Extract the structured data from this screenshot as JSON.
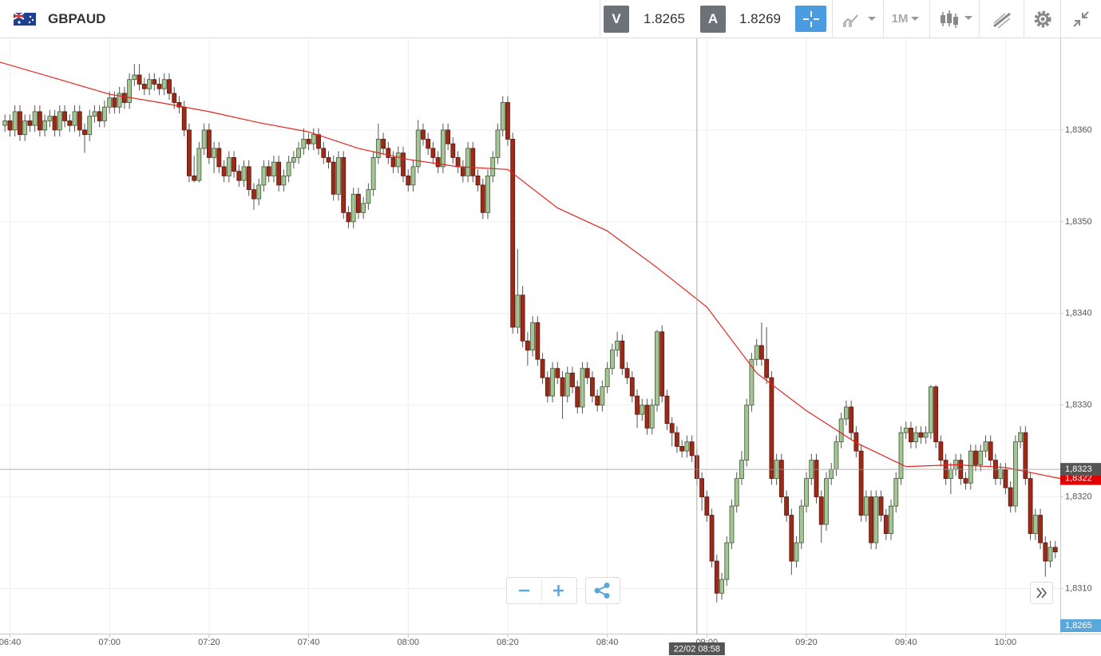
{
  "header": {
    "symbol": "GBPAUD",
    "sell_label": "V",
    "sell_price": "1.8265",
    "buy_label": "A",
    "buy_price": "1.8269",
    "timeframe": "1M"
  },
  "chart_data": {
    "type": "candlestick",
    "x": [
      "06:39",
      "06:40",
      "06:41",
      "06:42",
      "06:43",
      "06:44",
      "06:45",
      "06:46",
      "06:47",
      "06:48",
      "06:49",
      "06:50",
      "06:51",
      "06:52",
      "06:53",
      "06:54",
      "06:55",
      "06:56",
      "06:57",
      "06:58",
      "06:59",
      "07:00",
      "07:01",
      "07:02",
      "07:03",
      "07:04",
      "07:05",
      "07:06",
      "07:07",
      "07:08",
      "07:09",
      "07:10",
      "07:11",
      "07:12",
      "07:13",
      "07:14",
      "07:15",
      "07:16",
      "07:17",
      "07:18",
      "07:19",
      "07:20",
      "07:21",
      "07:22",
      "07:23",
      "07:24",
      "07:25",
      "07:26",
      "07:27",
      "07:28",
      "07:29",
      "07:30",
      "07:31",
      "07:32",
      "07:33",
      "07:34",
      "07:35",
      "07:36",
      "07:37",
      "07:38",
      "07:39",
      "07:40",
      "07:41",
      "07:42",
      "07:43",
      "07:44",
      "07:45",
      "07:46",
      "07:47",
      "07:48",
      "07:49",
      "07:50",
      "07:51",
      "07:52",
      "07:53",
      "07:54",
      "07:55",
      "07:56",
      "07:57",
      "07:58",
      "07:59",
      "08:00",
      "08:01",
      "08:02",
      "08:03",
      "08:04",
      "08:05",
      "08:06",
      "08:07",
      "08:08",
      "08:09",
      "08:10",
      "08:11",
      "08:12",
      "08:13",
      "08:14",
      "08:15",
      "08:16",
      "08:17",
      "08:18",
      "08:19",
      "08:20",
      "08:21",
      "08:22",
      "08:23",
      "08:24",
      "08:25",
      "08:26",
      "08:27",
      "08:28",
      "08:29",
      "08:30",
      "08:31",
      "08:32",
      "08:33",
      "08:34",
      "08:35",
      "08:36",
      "08:37",
      "08:38",
      "08:39",
      "08:40",
      "08:41",
      "08:42",
      "08:43",
      "08:44",
      "08:45",
      "08:46",
      "08:47",
      "08:48",
      "08:49",
      "08:50",
      "08:51",
      "08:52",
      "08:53",
      "08:54",
      "08:55",
      "08:56",
      "08:57",
      "08:58",
      "08:59",
      "09:00",
      "09:01",
      "09:02",
      "09:03",
      "09:04",
      "09:05",
      "09:06",
      "09:07",
      "09:08",
      "09:09",
      "09:10",
      "09:11",
      "09:12",
      "09:13",
      "09:14",
      "09:15",
      "09:16",
      "09:17",
      "09:18",
      "09:19",
      "09:20",
      "09:21",
      "09:22",
      "09:23",
      "09:24",
      "09:25",
      "09:26",
      "09:27",
      "09:28",
      "09:29",
      "09:30",
      "09:31",
      "09:32",
      "09:33",
      "09:34",
      "09:35",
      "09:36",
      "09:37",
      "09:38",
      "09:39",
      "09:40",
      "09:41",
      "09:42",
      "09:43",
      "09:44",
      "09:45",
      "09:46",
      "09:47",
      "09:48",
      "09:49",
      "09:50",
      "09:51",
      "09:52",
      "09:53",
      "09:54",
      "09:55",
      "09:56",
      "09:57",
      "09:58",
      "09:59",
      "10:00",
      "10:01",
      "10:02",
      "10:03",
      "10:04",
      "10:05",
      "10:06",
      "10:07",
      "10:08",
      "10:09",
      "10:10"
    ],
    "open": [
      1.83605,
      1.8361,
      1.836,
      1.8362,
      1.83595,
      1.8361,
      1.83605,
      1.8362,
      1.836,
      1.8361,
      1.83615,
      1.836,
      1.8362,
      1.8361,
      1.83605,
      1.8362,
      1.836,
      1.83595,
      1.83615,
      1.8362,
      1.8361,
      1.83625,
      1.83635,
      1.83625,
      1.8364,
      1.8363,
      1.83655,
      1.8366,
      1.8365,
      1.83645,
      1.83655,
      1.8365,
      1.83645,
      1.83655,
      1.8364,
      1.8363,
      1.83625,
      1.836,
      1.8355,
      1.83545,
      1.8358,
      1.836,
      1.8357,
      1.8358,
      1.8356,
      1.8355,
      1.8357,
      1.83555,
      1.83545,
      1.8356,
      1.83535,
      1.83525,
      1.8354,
      1.8356,
      1.8355,
      1.83565,
      1.8354,
      1.8355,
      1.83565,
      1.8357,
      1.8358,
      1.8359,
      1.83585,
      1.83595,
      1.8358,
      1.8357,
      1.83565,
      1.8353,
      1.8357,
      1.8351,
      1.835,
      1.8353,
      1.8351,
      1.8352,
      1.83535,
      1.8357,
      1.8359,
      1.8358,
      1.8357,
      1.8356,
      1.83575,
      1.8355,
      1.8354,
      1.8356,
      1.836,
      1.8359,
      1.8358,
      1.8357,
      1.8356,
      1.836,
      1.83585,
      1.8357,
      1.8356,
      1.8355,
      1.8358,
      1.8355,
      1.8354,
      1.8351,
      1.8355,
      1.8357,
      1.836,
      1.8363,
      1.8359,
      1.83385,
      1.8342,
      1.8337,
      1.8336,
      1.8339,
      1.8335,
      1.8333,
      1.8331,
      1.8334,
      1.8333,
      1.8331,
      1.83335,
      1.8332,
      1.83298,
      1.8334,
      1.8333,
      1.8331,
      1.833,
      1.8332,
      1.8334,
      1.8336,
      1.8337,
      1.8334,
      1.8333,
      1.8331,
      1.8329,
      1.833,
      1.83275,
      1.833,
      1.8338,
      1.8331,
      1.8328,
      1.8327,
      1.83255,
      1.8325,
      1.8326,
      1.83245,
      1.8322,
      1.832,
      1.8318,
      1.8313,
      1.83095,
      1.8311,
      1.8315,
      1.8319,
      1.8322,
      1.8324,
      1.833,
      1.8335,
      1.83365,
      1.8335,
      1.8333,
      1.8322,
      1.8324,
      1.832,
      1.8318,
      1.8313,
      1.8315,
      1.8319,
      1.8322,
      1.8324,
      1.832,
      1.8317,
      1.8322,
      1.8323,
      1.8326,
      1.83285,
      1.83298,
      1.8327,
      1.8325,
      1.8318,
      1.832,
      1.8315,
      1.832,
      1.8318,
      1.8316,
      1.8319,
      1.8322,
      1.8327,
      1.83275,
      1.8326,
      1.8327,
      1.83265,
      1.8327,
      1.8332,
      1.8326,
      1.8324,
      1.8322,
      1.8323,
      1.8324,
      1.8322,
      1.83215,
      1.8325,
      1.83235,
      1.8325,
      1.8326,
      1.8324,
      1.8322,
      1.8323,
      1.8321,
      1.8319,
      1.8326,
      1.8327,
      1.8322,
      1.8316,
      1.8318,
      1.8315,
      1.8313,
      1.83145
    ],
    "high": [
      1.83617,
      1.83617,
      1.83627,
      1.83627,
      1.83617,
      1.83617,
      1.83627,
      1.83627,
      1.83617,
      1.83622,
      1.83622,
      1.83627,
      1.83627,
      1.83617,
      1.83627,
      1.83627,
      1.83607,
      1.83622,
      1.83627,
      1.83627,
      1.83632,
      1.83642,
      1.83642,
      1.83647,
      1.83647,
      1.83662,
      1.83672,
      1.83672,
      1.83657,
      1.83662,
      1.83662,
      1.83657,
      1.83662,
      1.83662,
      1.83647,
      1.83637,
      1.83632,
      1.83607,
      1.83572,
      1.83587,
      1.83607,
      1.83607,
      1.83587,
      1.83587,
      1.83567,
      1.83577,
      1.83577,
      1.83562,
      1.83567,
      1.83567,
      1.83542,
      1.83547,
      1.83567,
      1.83567,
      1.83572,
      1.83572,
      1.83557,
      1.83572,
      1.83577,
      1.83587,
      1.83602,
      1.83597,
      1.83602,
      1.83602,
      1.83587,
      1.83577,
      1.83572,
      1.83577,
      1.83577,
      1.83517,
      1.83537,
      1.83537,
      1.83527,
      1.83542,
      1.83577,
      1.83607,
      1.83597,
      1.83587,
      1.83577,
      1.83582,
      1.83582,
      1.83557,
      1.83567,
      1.83611,
      1.83607,
      1.83597,
      1.83587,
      1.83577,
      1.83607,
      1.83607,
      1.83592,
      1.83577,
      1.83567,
      1.83587,
      1.83587,
      1.83557,
      1.83547,
      1.83557,
      1.83577,
      1.83607,
      1.83637,
      1.83637,
      1.83597,
      1.8347,
      1.8343,
      1.8338,
      1.83397,
      1.83397,
      1.83357,
      1.83337,
      1.83347,
      1.83347,
      1.83337,
      1.83342,
      1.83342,
      1.83327,
      1.83347,
      1.83347,
      1.83337,
      1.83317,
      1.83327,
      1.83347,
      1.83367,
      1.8338,
      1.83377,
      1.83347,
      1.83337,
      1.83317,
      1.83307,
      1.83307,
      1.83307,
      1.83382,
      1.83387,
      1.83317,
      1.83287,
      1.83277,
      1.83262,
      1.83267,
      1.83267,
      1.83252,
      1.83227,
      1.83207,
      1.83187,
      1.83137,
      1.83117,
      1.83157,
      1.83197,
      1.83227,
      1.8325,
      1.83307,
      1.83357,
      1.83372,
      1.8339,
      1.83385,
      1.83337,
      1.83247,
      1.83247,
      1.83207,
      1.83187,
      1.83157,
      1.83197,
      1.83227,
      1.83247,
      1.83247,
      1.83207,
      1.83227,
      1.83237,
      1.83267,
      1.83292,
      1.83305,
      1.83305,
      1.83277,
      1.83257,
      1.83207,
      1.83207,
      1.83207,
      1.83207,
      1.83187,
      1.83197,
      1.83227,
      1.83277,
      1.83282,
      1.83282,
      1.83277,
      1.83277,
      1.83277,
      1.83322,
      1.83322,
      1.83267,
      1.83247,
      1.83237,
      1.83247,
      1.83247,
      1.83227,
      1.83257,
      1.83257,
      1.83257,
      1.83267,
      1.83267,
      1.83247,
      1.83237,
      1.83237,
      1.83217,
      1.83267,
      1.83277,
      1.83277,
      1.83227,
      1.83187,
      1.83187,
      1.83157,
      1.83152,
      1.83152
    ],
    "low": [
      1.83598,
      1.83593,
      1.83593,
      1.83588,
      1.83588,
      1.83598,
      1.83598,
      1.83593,
      1.83593,
      1.83603,
      1.83593,
      1.83593,
      1.83603,
      1.83598,
      1.83598,
      1.83593,
      1.83575,
      1.83588,
      1.83608,
      1.83603,
      1.83603,
      1.83618,
      1.83618,
      1.83618,
      1.83623,
      1.83623,
      1.83648,
      1.83643,
      1.83638,
      1.83638,
      1.83643,
      1.83638,
      1.83638,
      1.83633,
      1.83623,
      1.83618,
      1.83593,
      1.83543,
      1.83543,
      1.83543,
      1.83573,
      1.83563,
      1.83553,
      1.83553,
      1.83543,
      1.83543,
      1.83548,
      1.83538,
      1.83538,
      1.83528,
      1.83513,
      1.83518,
      1.83533,
      1.83543,
      1.83543,
      1.83533,
      1.83533,
      1.83543,
      1.83558,
      1.83563,
      1.83573,
      1.83578,
      1.83578,
      1.83573,
      1.83563,
      1.83558,
      1.83523,
      1.83523,
      1.83503,
      1.83493,
      1.83493,
      1.83503,
      1.83503,
      1.83513,
      1.83528,
      1.83563,
      1.83573,
      1.83563,
      1.83553,
      1.83553,
      1.83543,
      1.83533,
      1.83533,
      1.83553,
      1.83583,
      1.83573,
      1.83563,
      1.83553,
      1.83553,
      1.83578,
      1.83563,
      1.83553,
      1.83543,
      1.83543,
      1.83543,
      1.83533,
      1.83503,
      1.83503,
      1.83543,
      1.83563,
      1.83593,
      1.83583,
      1.83378,
      1.83378,
      1.83363,
      1.83343,
      1.83353,
      1.83343,
      1.83323,
      1.83303,
      1.83303,
      1.83323,
      1.83285,
      1.83303,
      1.83313,
      1.83291,
      1.83291,
      1.83323,
      1.83303,
      1.83293,
      1.83293,
      1.83313,
      1.83333,
      1.83353,
      1.83333,
      1.83323,
      1.83303,
      1.83275,
      1.83283,
      1.83268,
      1.83268,
      1.83293,
      1.83303,
      1.83273,
      1.83255,
      1.83248,
      1.83243,
      1.83243,
      1.83238,
      1.83213,
      1.83185,
      1.83173,
      1.83123,
      1.83085,
      1.83088,
      1.83103,
      1.83143,
      1.83183,
      1.83213,
      1.83233,
      1.83293,
      1.83343,
      1.83343,
      1.83323,
      1.83213,
      1.83213,
      1.83193,
      1.83173,
      1.83115,
      1.83123,
      1.83143,
      1.83183,
      1.83213,
      1.83193,
      1.8315,
      1.83163,
      1.83213,
      1.83223,
      1.83253,
      1.83278,
      1.83263,
      1.83243,
      1.83173,
      1.83173,
      1.83143,
      1.83143,
      1.83173,
      1.83153,
      1.83153,
      1.83183,
      1.83213,
      1.83263,
      1.83253,
      1.83253,
      1.83258,
      1.83258,
      1.83263,
      1.83253,
      1.83233,
      1.83213,
      1.83203,
      1.83223,
      1.83213,
      1.83208,
      1.83208,
      1.83228,
      1.83228,
      1.83243,
      1.83233,
      1.83213,
      1.83213,
      1.83203,
      1.83183,
      1.83183,
      1.83253,
      1.83213,
      1.83153,
      1.83153,
      1.83143,
      1.83113,
      1.83123,
      1.83133
    ],
    "close": [
      1.8361,
      1.836,
      1.8362,
      1.83595,
      1.8361,
      1.83605,
      1.8362,
      1.836,
      1.8361,
      1.83615,
      1.836,
      1.8362,
      1.8361,
      1.83605,
      1.8362,
      1.836,
      1.83595,
      1.83615,
      1.8362,
      1.8361,
      1.83625,
      1.83635,
      1.83625,
      1.8364,
      1.8363,
      1.83655,
      1.8366,
      1.8365,
      1.83645,
      1.83655,
      1.8365,
      1.83645,
      1.83655,
      1.8364,
      1.8363,
      1.83625,
      1.836,
      1.8355,
      1.83545,
      1.8358,
      1.836,
      1.8357,
      1.8358,
      1.8356,
      1.8355,
      1.8357,
      1.83555,
      1.83545,
      1.8356,
      1.83535,
      1.83525,
      1.8354,
      1.8356,
      1.8355,
      1.83565,
      1.8354,
      1.8355,
      1.83565,
      1.8357,
      1.8358,
      1.8359,
      1.83585,
      1.83595,
      1.8358,
      1.8357,
      1.83565,
      1.8353,
      1.8357,
      1.8351,
      1.835,
      1.8353,
      1.8351,
      1.8352,
      1.83535,
      1.8357,
      1.8359,
      1.8358,
      1.8357,
      1.8356,
      1.83575,
      1.8355,
      1.8354,
      1.8356,
      1.836,
      1.8359,
      1.8358,
      1.8357,
      1.8356,
      1.836,
      1.83585,
      1.8357,
      1.8356,
      1.8355,
      1.8358,
      1.8355,
      1.8354,
      1.8351,
      1.8355,
      1.8357,
      1.836,
      1.8363,
      1.8359,
      1.83385,
      1.8342,
      1.8337,
      1.8336,
      1.8339,
      1.8335,
      1.8333,
      1.8331,
      1.8334,
      1.8333,
      1.8331,
      1.83335,
      1.8332,
      1.83298,
      1.8334,
      1.8333,
      1.8331,
      1.833,
      1.8332,
      1.8334,
      1.8336,
      1.8337,
      1.8334,
      1.8333,
      1.8331,
      1.8329,
      1.833,
      1.83275,
      1.833,
      1.8338,
      1.8331,
      1.8328,
      1.8327,
      1.83255,
      1.8325,
      1.8326,
      1.83245,
      1.8322,
      1.832,
      1.8318,
      1.8313,
      1.83095,
      1.8311,
      1.8315,
      1.8319,
      1.8322,
      1.8324,
      1.833,
      1.8335,
      1.83365,
      1.8335,
      1.8333,
      1.8322,
      1.8324,
      1.832,
      1.8318,
      1.8313,
      1.8315,
      1.8319,
      1.8322,
      1.8324,
      1.832,
      1.8317,
      1.8322,
      1.8323,
      1.8326,
      1.83285,
      1.83298,
      1.8327,
      1.8325,
      1.8318,
      1.832,
      1.8315,
      1.832,
      1.8318,
      1.8316,
      1.8319,
      1.8322,
      1.8327,
      1.83275,
      1.8326,
      1.8327,
      1.83265,
      1.8327,
      1.8332,
      1.8326,
      1.8324,
      1.8322,
      1.8323,
      1.8324,
      1.8322,
      1.83215,
      1.8325,
      1.83235,
      1.8325,
      1.8326,
      1.8324,
      1.8322,
      1.8323,
      1.8321,
      1.8319,
      1.8326,
      1.8327,
      1.8322,
      1.8316,
      1.8318,
      1.8315,
      1.8313,
      1.83145,
      1.8314
    ],
    "up_color": "#a6c596",
    "down_color": "#9b2a19",
    "ma": {
      "color": "#e2261f",
      "x": [
        "06:38",
        "06:50",
        "07:00",
        "07:10",
        "07:20",
        "07:30",
        "07:40",
        "07:50",
        "08:00",
        "08:10",
        "08:20",
        "08:30",
        "08:40",
        "08:50",
        "09:00",
        "09:10",
        "09:20",
        "09:30",
        "09:40",
        "09:50",
        "10:00",
        "10:11"
      ],
      "values": [
        1.83674,
        1.83655,
        1.83639,
        1.8363,
        1.8362,
        1.83608,
        1.83598,
        1.8358,
        1.83568,
        1.8356,
        1.83557,
        1.83515,
        1.8349,
        1.8345,
        1.83407,
        1.83335,
        1.83294,
        1.83259,
        1.83233,
        1.83235,
        1.83232,
        1.8322
      ]
    },
    "xlim": [
      "06:38",
      "10:11"
    ],
    "ylim": [
      1.8305,
      1.837
    ],
    "xticks": [
      "06:40",
      "07:00",
      "07:20",
      "07:40",
      "08:00",
      "08:20",
      "08:40",
      "09:00",
      "09:20",
      "09:40",
      "10:00"
    ],
    "yticks": [
      {
        "value": 1.831,
        "label": "1,8310"
      },
      {
        "value": 1.832,
        "label": "1,8320"
      },
      {
        "value": 1.833,
        "label": "1,8330"
      },
      {
        "value": 1.834,
        "label": "1,8340"
      },
      {
        "value": 1.835,
        "label": "1,8350"
      },
      {
        "value": 1.836,
        "label": "1,8360"
      }
    ],
    "grid": true,
    "crosshair": {
      "x": {
        "value": "08:58",
        "label": "22/02 08:58"
      },
      "y": {
        "value": 1.8323,
        "label": "1,8323"
      }
    },
    "last_price": {
      "value": 1.8322,
      "label": "1,8322",
      "color": "#e00000"
    },
    "sell_price_tag": {
      "value": 1.8265,
      "label": "1,8265",
      "color": "#5aa7dc"
    }
  }
}
